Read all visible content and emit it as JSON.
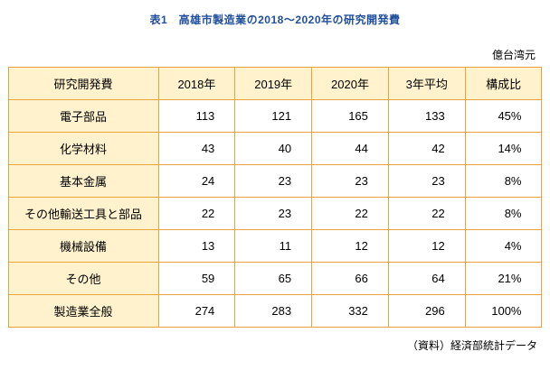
{
  "title": "表1　高雄市製造業の2018〜2020年の研究開発費",
  "unit_label": "億台湾元",
  "source_label": "（資料）経済部統計データ",
  "colors": {
    "title": "#1F4E9C",
    "border": "#E8A33D",
    "header_bg": "#FFF2CC"
  },
  "chart_data": {
    "type": "table",
    "title": "表1　高雄市製造業の2018〜2020年の研究開発費",
    "unit": "億台湾元",
    "columns": [
      "研究開発費",
      "2018年",
      "2019年",
      "2020年",
      "3年平均",
      "構成比"
    ],
    "rows": [
      [
        "電子部品",
        "113",
        "121",
        "165",
        "133",
        "45%"
      ],
      [
        "化学材料",
        "43",
        "40",
        "44",
        "42",
        "14%"
      ],
      [
        "基本金属",
        "24",
        "23",
        "23",
        "23",
        "8%"
      ],
      [
        "その他輸送工具と部品",
        "22",
        "23",
        "22",
        "22",
        "8%"
      ],
      [
        "機械設備",
        "13",
        "11",
        "12",
        "12",
        "4%"
      ],
      [
        "その他",
        "59",
        "65",
        "66",
        "64",
        "21%"
      ],
      [
        "製造業全般",
        "274",
        "283",
        "332",
        "296",
        "100%"
      ]
    ],
    "source": "（資料）経済部統計データ",
    "layout": {
      "header_row_shaded": true,
      "first_column_shaded": true,
      "values_align": "right"
    }
  }
}
